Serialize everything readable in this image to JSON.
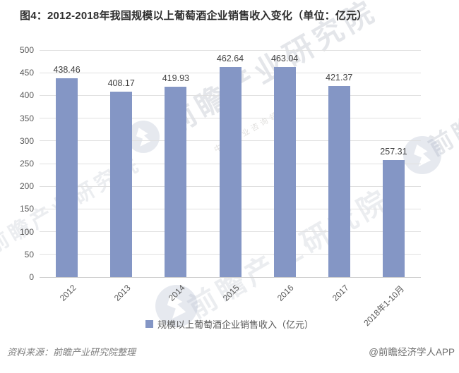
{
  "title": "图4：2012-2018年我国规模以上葡萄酒企业销售收入变化（单位：亿元）",
  "chart_data": {
    "type": "bar",
    "title": "图4：2012-2018年我国规模以上葡萄酒企业销售收入变化（单位：亿元）",
    "categories": [
      "2012",
      "2013",
      "2014",
      "2015",
      "2016",
      "2017",
      "2018年1-10月"
    ],
    "series": [
      {
        "name": "规模以上葡萄酒企业销售收入（亿元）",
        "values": [
          438.46,
          408.17,
          419.93,
          462.64,
          463.04,
          421.37,
          257.31
        ]
      }
    ],
    "value_labels": [
      "438.46",
      "408.17",
      "419.93",
      "462.64",
      "463.04",
      "421.37",
      "257.31"
    ],
    "xlabel": "",
    "ylabel": "",
    "ylim": [
      0,
      500
    ],
    "yticks": [
      0,
      50,
      100,
      150,
      200,
      250,
      300,
      350,
      400,
      450,
      500
    ],
    "grid": true,
    "legend_position": "bottom",
    "bar_color": "#8496C5"
  },
  "legend": {
    "marker_color": "#8496C5",
    "label": "规模以上葡萄酒企业销售收入（亿元）"
  },
  "footer": {
    "source": "资料来源：前瞻产业研究院整理",
    "credit": "@前瞻经济学人APP"
  },
  "watermark": {
    "brand": "前瞻产业研究院",
    "tagline": "中国产业咨询领导者"
  },
  "colors": {
    "bar": "#8496C5",
    "grid": "#E0E0E0",
    "axis_text": "#595959",
    "value_text": "#404040",
    "title_text": "#2F2F2F",
    "footer_text": "#7F7F7F"
  }
}
